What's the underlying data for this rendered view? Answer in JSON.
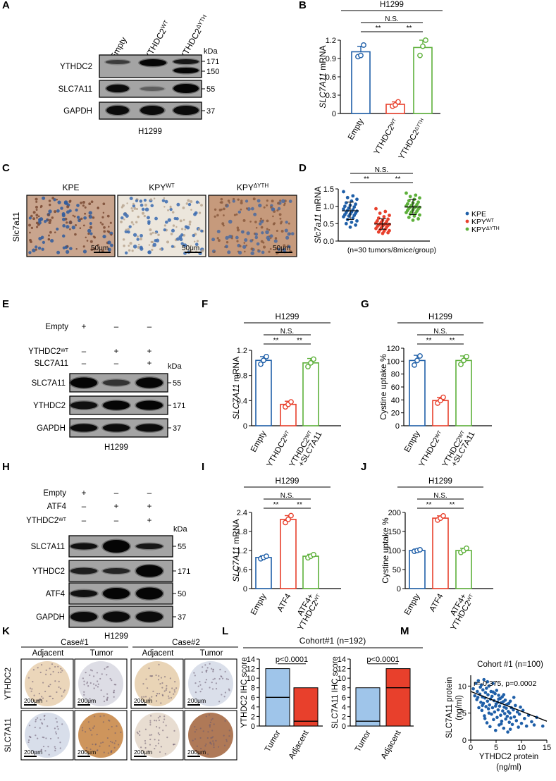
{
  "colors": {
    "blue": "#1f5fa8",
    "red": "#e8402c",
    "green": "#5db03a",
    "light_blue": "#9fc5ea",
    "dark_blue": "#0b4f96"
  },
  "panel_letters": [
    "A",
    "B",
    "C",
    "D",
    "E",
    "F",
    "G",
    "H",
    "I",
    "J",
    "K",
    "L",
    "M"
  ],
  "panel_A": {
    "lanes": [
      "Empty",
      "YTHDC2",
      "YTHDC2"
    ],
    "lane_sup": [
      "",
      "WT",
      "ΔYTH"
    ],
    "kda_label": "kDa",
    "rows": [
      {
        "label": "YTHDC2",
        "markers": [
          "171",
          "150"
        ]
      },
      {
        "label": "SLC7A11",
        "markers": [
          "55"
        ]
      },
      {
        "label": "GAPDH",
        "markers": [
          "37"
        ]
      }
    ],
    "cell_line": "H1299"
  },
  "panel_C": {
    "row_label": "Slc7a11",
    "titles": [
      "KPE",
      "KPY",
      "KPY"
    ],
    "title_sup": [
      "",
      "WT",
      "ΔYTH"
    ],
    "scale": "50μm"
  },
  "panel_E": {
    "conditions": [
      {
        "label": "Empty",
        "sup": "",
        "marks": [
          "+",
          "–",
          "–"
        ]
      },
      {
        "label": "YTHDC2",
        "sup": "WT",
        "marks": [
          "–",
          "+",
          "+"
        ]
      },
      {
        "label": "SLC7A11",
        "sup": "",
        "marks": [
          "–",
          "–",
          "+"
        ]
      }
    ],
    "kda_label": "kDa",
    "rows": [
      {
        "label": "SLC7A11",
        "markers": [
          "55"
        ]
      },
      {
        "label": "YTHDC2",
        "markers": [
          "171"
        ]
      },
      {
        "label": "GAPDH",
        "markers": [
          "37"
        ]
      }
    ],
    "cell_line": "H1299"
  },
  "panel_H": {
    "conditions": [
      {
        "label": "Empty",
        "sup": "",
        "marks": [
          "+",
          "–",
          "–"
        ]
      },
      {
        "label": "ATF4",
        "sup": "",
        "marks": [
          "–",
          "+",
          "+"
        ]
      },
      {
        "label": "YTHDC2",
        "sup": "WT",
        "marks": [
          "–",
          "–",
          "+"
        ]
      }
    ],
    "kda_label": "kDa",
    "rows": [
      {
        "label": "SLC7A11",
        "markers": [
          "55"
        ]
      },
      {
        "label": "YTHDC2",
        "markers": [
          "171"
        ]
      },
      {
        "label": "ATF4",
        "markers": [
          "50"
        ]
      },
      {
        "label": "GAPDH",
        "markers": [
          "37"
        ]
      }
    ],
    "cell_line": "H1299"
  },
  "panel_K": {
    "cases": [
      "Case#1",
      "Case#2"
    ],
    "columns": [
      "Adjacent",
      "Tumor",
      "Adjacent",
      "Tumor"
    ],
    "rows": [
      "YTHDC2",
      "SLC7A11"
    ],
    "scale": "200μm"
  },
  "panel_L_title": "Cohort#1 (n=192)",
  "chart_data": [
    {
      "panel": "B",
      "type": "bar",
      "title": "H1299",
      "ylabel": "SLC7A11 mRNA",
      "ylabel_italic_part": "SLC7A11",
      "ylabel_rest": " mRNA",
      "ylim": [
        0,
        1.2
      ],
      "yticks": [
        "0",
        "0.3",
        "0.6",
        "0.9",
        "1.2"
      ],
      "categories": [
        "Empty",
        "YTHDC2",
        "YTHDC2"
      ],
      "category_sup": [
        "",
        "WT",
        "ΔYTH"
      ],
      "values": [
        1.01,
        0.15,
        1.08
      ],
      "errors": [
        0.09,
        0.04,
        0.12
      ],
      "points": [
        [
          0.93,
          0.95,
          1.12
        ],
        [
          0.12,
          0.14,
          0.19
        ],
        [
          0.95,
          1.1,
          1.2
        ]
      ],
      "bar_colors": [
        "#1f5fa8",
        "#e8402c",
        "#5db03a"
      ],
      "significance": [
        {
          "from": 0,
          "to": 1,
          "label": "**"
        },
        {
          "from": 1,
          "to": 2,
          "label": "**"
        },
        {
          "from": 0,
          "to": 2,
          "label": "N.S."
        }
      ]
    },
    {
      "panel": "D",
      "type": "scatter",
      "title": "",
      "ylabel": "Slc7a11  mRNA",
      "ylabel_italic_part": "Slc7a11",
      "ylabel_rest": "  mRNA",
      "ylim": [
        0,
        1.5
      ],
      "yticks": [
        "0.0",
        "0.5",
        "1.0",
        "1.5"
      ],
      "categories": [
        "KPE",
        "KPY",
        "KPY"
      ],
      "category_sup": [
        "",
        "WT",
        "ΔYTH"
      ],
      "means": [
        0.87,
        0.49,
        0.98
      ],
      "errors": [
        0.25,
        0.15,
        0.22
      ],
      "points": [
        [
          1.42,
          1.3,
          1.25,
          1.2,
          1.15,
          1.1,
          1.06,
          1.03,
          1.0,
          0.98,
          0.95,
          0.92,
          0.9,
          0.88,
          0.86,
          0.84,
          0.82,
          0.8,
          0.78,
          0.76,
          0.74,
          0.72,
          0.7,
          0.66,
          0.62,
          0.58,
          0.54,
          0.5,
          0.46,
          0.4
        ],
        [
          0.93,
          0.85,
          0.8,
          0.74,
          0.7,
          0.66,
          0.63,
          0.6,
          0.58,
          0.56,
          0.54,
          0.52,
          0.5,
          0.49,
          0.48,
          0.47,
          0.46,
          0.45,
          0.44,
          0.42,
          0.4,
          0.38,
          0.36,
          0.34,
          0.32,
          0.3,
          0.28,
          0.26,
          0.24,
          0.22
        ],
        [
          1.38,
          1.32,
          1.28,
          1.24,
          1.2,
          1.16,
          1.12,
          1.1,
          1.07,
          1.05,
          1.03,
          1.01,
          0.99,
          0.98,
          0.97,
          0.96,
          0.94,
          0.92,
          0.9,
          0.88,
          0.86,
          0.84,
          0.82,
          0.8,
          0.78,
          0.75,
          0.72,
          0.68,
          0.64,
          0.6
        ]
      ],
      "colors": [
        "#1f5fa8",
        "#e8402c",
        "#5db03a"
      ],
      "significance": [
        {
          "from": 0,
          "to": 1,
          "label": "**"
        },
        {
          "from": 1,
          "to": 2,
          "label": "**"
        },
        {
          "from": 0,
          "to": 2,
          "label": "N.S."
        }
      ],
      "note": "(n=30 tumors/8mice/group)",
      "legend": [
        "KPE",
        "KPY",
        "KPY"
      ],
      "legend_sup": [
        "",
        "WT",
        "ΔYTH"
      ],
      "legend_placement": "right"
    },
    {
      "panel": "F",
      "type": "bar",
      "title": "H1299",
      "ylabel": "SLC7A11 mRNA",
      "ylabel_italic_part": "SLC7A11",
      "ylabel_rest": " mRNA",
      "ylim": [
        0,
        1.2
      ],
      "yticks": [
        "0",
        "0.4",
        "0.8",
        "1.2"
      ],
      "categories": [
        "Empty",
        "YTHDC2",
        "YTHDC2"
      ],
      "category_sup": [
        "",
        "WT",
        "WT"
      ],
      "category_line2": [
        "",
        "",
        "+SLC7A11"
      ],
      "values": [
        1.04,
        0.34,
        1.0
      ],
      "errors": [
        0.06,
        0.05,
        0.07
      ],
      "points": [
        [
          0.98,
          1.04,
          1.1
        ],
        [
          0.3,
          0.34,
          0.38
        ],
        [
          0.94,
          1.0,
          1.06
        ]
      ],
      "bar_colors": [
        "#1f5fa8",
        "#e8402c",
        "#5db03a"
      ],
      "significance": [
        {
          "from": 0,
          "to": 1,
          "label": "**"
        },
        {
          "from": 1,
          "to": 2,
          "label": "**"
        },
        {
          "from": 0,
          "to": 2,
          "label": "N.S."
        }
      ]
    },
    {
      "panel": "G",
      "type": "bar",
      "title": "H1299",
      "ylabel": "Cystine uptake %",
      "ylim": [
        0,
        120
      ],
      "yticks": [
        "0",
        "20",
        "40",
        "60",
        "80",
        "100",
        "120"
      ],
      "categories": [
        "Empty",
        "YTHDC2",
        "YTHDC2"
      ],
      "category_sup": [
        "",
        "WT",
        "WT"
      ],
      "category_line2": [
        "",
        "",
        "+SLC7A11"
      ],
      "values": [
        101,
        39,
        101
      ],
      "errors": [
        8,
        5,
        7
      ],
      "points": [
        [
          94,
          101,
          108
        ],
        [
          35,
          39,
          44
        ],
        [
          95,
          101,
          107
        ]
      ],
      "bar_colors": [
        "#1f5fa8",
        "#e8402c",
        "#5db03a"
      ],
      "significance": [
        {
          "from": 0,
          "to": 1,
          "label": "**"
        },
        {
          "from": 1,
          "to": 2,
          "label": "**"
        },
        {
          "from": 0,
          "to": 2,
          "label": "N.S."
        }
      ]
    },
    {
      "panel": "I",
      "type": "bar",
      "title": "H1299",
      "ylabel": "SLC7A11 mRNA",
      "ylabel_italic_part": "SLC7A11",
      "ylabel_rest": " mRNA",
      "ylim": [
        0,
        2.4
      ],
      "yticks": [
        "0",
        "0.6",
        "1.2",
        "1.8",
        "2.4"
      ],
      "categories": [
        "Empty",
        "ATF4",
        "ATF4+"
      ],
      "category_sup": [
        "",
        "",
        ""
      ],
      "category_line2": [
        "",
        "",
        "YTHDC2"
      ],
      "category_line2_sup": [
        "",
        "",
        "WT"
      ],
      "values": [
        0.98,
        2.18,
        1.02
      ],
      "errors": [
        0.05,
        0.12,
        0.06
      ],
      "points": [
        [
          0.94,
          0.98,
          1.02
        ],
        [
          2.08,
          2.18,
          2.3
        ],
        [
          0.97,
          1.02,
          1.07
        ]
      ],
      "bar_colors": [
        "#1f5fa8",
        "#e8402c",
        "#5db03a"
      ],
      "significance": [
        {
          "from": 0,
          "to": 1,
          "label": "**"
        },
        {
          "from": 1,
          "to": 2,
          "label": "**"
        },
        {
          "from": 0,
          "to": 2,
          "label": "N.S."
        }
      ]
    },
    {
      "panel": "J",
      "type": "bar",
      "title": "H1299",
      "ylabel": "Cystine uptake %",
      "ylim": [
        0,
        200
      ],
      "yticks": [
        "0",
        "50",
        "100",
        "150",
        "200"
      ],
      "categories": [
        "Empty",
        "ATF4",
        "ATF4+"
      ],
      "category_sup": [
        "",
        "",
        ""
      ],
      "category_line2": [
        "",
        "",
        "YTHDC2"
      ],
      "category_line2_sup": [
        "",
        "",
        "WT"
      ],
      "values": [
        100,
        185,
        100
      ],
      "errors": [
        3,
        6,
        6
      ],
      "points": [
        [
          98,
          100,
          102
        ],
        [
          180,
          185,
          191
        ],
        [
          95,
          100,
          106
        ]
      ],
      "bar_colors": [
        "#1f5fa8",
        "#e8402c",
        "#5db03a"
      ],
      "significance": [
        {
          "from": 0,
          "to": 1,
          "label": "**"
        },
        {
          "from": 1,
          "to": 2,
          "label": "**"
        },
        {
          "from": 0,
          "to": 2,
          "label": "N.S."
        }
      ]
    },
    {
      "panel": "L1",
      "type": "bar",
      "title": "",
      "ylabel": "YTHDC2 IHC score",
      "ylim": [
        0,
        14
      ],
      "yticks": [
        "0",
        "2",
        "4",
        "6",
        "8",
        "10",
        "12",
        "14"
      ],
      "categories": [
        "Tumor",
        "Adjacent"
      ],
      "ranges": [
        [
          0,
          12
        ],
        [
          0,
          8
        ]
      ],
      "medians": [
        6,
        1
      ],
      "bar_colors": [
        "#9fc5ea",
        "#e8402c"
      ],
      "pvalue": "p<0.0001"
    },
    {
      "panel": "L2",
      "type": "bar",
      "title": "",
      "ylabel": "SLC7A11 IHC score",
      "ylim": [
        0,
        14
      ],
      "yticks": [
        "0",
        "2",
        "4",
        "6",
        "8",
        "10",
        "12",
        "14"
      ],
      "categories": [
        "Tumor",
        "Adjacent"
      ],
      "ranges": [
        [
          0,
          8
        ],
        [
          0,
          12
        ]
      ],
      "medians": [
        1,
        8
      ],
      "bar_colors": [
        "#9fc5ea",
        "#e8402c"
      ],
      "pvalue": "p<0.0001"
    },
    {
      "panel": "M",
      "type": "scatter",
      "title": "Cohort #1 (n=100)",
      "xlabel_line1": "YTHDC2 protein",
      "xlabel_line2": "(ng/ml)",
      "ylabel_line1": "SLC7A11 protein",
      "ylabel_line2": "(ng/ml)",
      "xlim": [
        0,
        15
      ],
      "ylim": [
        0,
        12
      ],
      "xticks": [
        "0",
        "5",
        "10",
        "15"
      ],
      "yticks": [
        "0",
        "5",
        "10"
      ],
      "annotation": "r=-0.375, p=0.0002",
      "regression": {
        "x0": 0,
        "y0": 9.0,
        "x1": 15,
        "y1": 3.5
      },
      "points": [
        [
          0.5,
          9.5
        ],
        [
          0.8,
          8.2
        ],
        [
          1.0,
          10.5
        ],
        [
          1.2,
          7.5
        ],
        [
          1.3,
          9.0
        ],
        [
          1.5,
          11.0
        ],
        [
          1.6,
          6.0
        ],
        [
          1.8,
          8.5
        ],
        [
          1.9,
          9.8
        ],
        [
          2.0,
          7.0
        ],
        [
          2.1,
          10.2
        ],
        [
          2.2,
          5.5
        ],
        [
          2.3,
          8.0
        ],
        [
          2.4,
          9.3
        ],
        [
          2.5,
          6.8
        ],
        [
          2.6,
          11.2
        ],
        [
          2.7,
          4.5
        ],
        [
          2.8,
          7.8
        ],
        [
          2.9,
          8.8
        ],
        [
          3.0,
          6.2
        ],
        [
          3.1,
          9.6
        ],
        [
          3.2,
          3.2
        ],
        [
          3.3,
          7.2
        ],
        [
          3.4,
          8.4
        ],
        [
          3.5,
          5.8
        ],
        [
          3.6,
          10.0
        ],
        [
          3.7,
          6.5
        ],
        [
          3.8,
          2.5
        ],
        [
          3.9,
          7.6
        ],
        [
          4.0,
          9.0
        ],
        [
          4.1,
          4.8
        ],
        [
          4.2,
          8.1
        ],
        [
          4.3,
          6.0
        ],
        [
          4.4,
          10.5
        ],
        [
          4.5,
          3.8
        ],
        [
          4.6,
          7.3
        ],
        [
          4.7,
          5.2
        ],
        [
          4.8,
          8.6
        ],
        [
          4.9,
          1.8
        ],
        [
          5.0,
          6.7
        ],
        [
          5.1,
          9.2
        ],
        [
          5.2,
          4.2
        ],
        [
          5.3,
          7.0
        ],
        [
          5.4,
          5.6
        ],
        [
          5.5,
          8.3
        ],
        [
          5.6,
          2.8
        ],
        [
          5.7,
          6.3
        ],
        [
          5.8,
          7.7
        ],
        [
          5.9,
          4.6
        ],
        [
          6.0,
          6.9
        ],
        [
          6.1,
          3.5
        ],
        [
          6.2,
          8.0
        ],
        [
          6.3,
          5.4
        ],
        [
          6.4,
          7.1
        ],
        [
          6.5,
          2.2
        ],
        [
          6.6,
          6.1
        ],
        [
          6.7,
          4.9
        ],
        [
          6.8,
          7.4
        ],
        [
          6.9,
          3.9
        ],
        [
          7.0,
          5.9
        ],
        [
          7.1,
          6.6
        ],
        [
          7.2,
          4.4
        ],
        [
          7.3,
          1.5
        ],
        [
          7.4,
          5.3
        ],
        [
          7.5,
          6.8
        ],
        [
          7.6,
          3.3
        ],
        [
          7.7,
          5.0
        ],
        [
          7.8,
          7.2
        ],
        [
          7.9,
          4.1
        ],
        [
          8.0,
          6.0
        ],
        [
          8.2,
          2.9
        ],
        [
          8.4,
          5.6
        ],
        [
          8.6,
          4.3
        ],
        [
          8.8,
          6.4
        ],
        [
          9.0,
          3.6
        ],
        [
          9.2,
          5.2
        ],
        [
          9.4,
          2.4
        ],
        [
          9.6,
          4.8
        ],
        [
          9.8,
          6.1
        ],
        [
          10.0,
          3.1
        ],
        [
          10.3,
          5.5
        ],
        [
          10.6,
          4.0
        ],
        [
          11.0,
          2.6
        ],
        [
          11.4,
          4.6
        ],
        [
          12.0,
          3.4
        ],
        [
          12.5,
          2.8
        ],
        [
          13.0,
          4.2
        ],
        [
          14.2,
          2.6
        ],
        [
          1.4,
          7.9
        ],
        [
          2.3,
          6.4
        ],
        [
          3.3,
          10.8
        ],
        [
          4.4,
          8.9
        ],
        [
          5.5,
          7.6
        ],
        [
          6.5,
          8.4
        ],
        [
          3.6,
          5.0
        ],
        [
          4.9,
          6.3
        ],
        [
          2.8,
          4.0
        ],
        [
          6.0,
          3.0
        ],
        [
          7.8,
          2.0
        ],
        [
          8.5,
          7.9
        ]
      ],
      "color": "#1f5fa8"
    }
  ]
}
